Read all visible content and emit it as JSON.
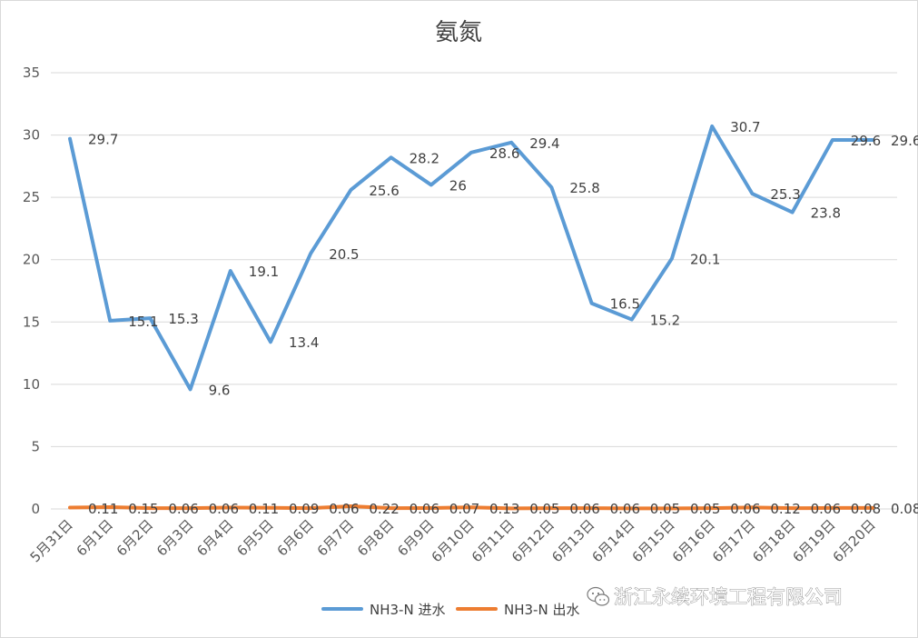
{
  "chart_data": {
    "type": "line",
    "title": "氨氮",
    "xlabel": "",
    "ylabel": "",
    "ylim": [
      0,
      35
    ],
    "yticks": [
      0,
      5,
      10,
      15,
      20,
      25,
      30,
      35
    ],
    "grid": true,
    "legend_position": "bottom",
    "categories": [
      "5月31日",
      "6月1日",
      "6月2日",
      "6月3日",
      "6月4日",
      "6月5日",
      "6月6日",
      "6月7日",
      "6月8日",
      "6月9日",
      "6月10日",
      "6月11日",
      "6月12日",
      "6月13日",
      "6月14日",
      "6月15日",
      "6月16日",
      "6月17日",
      "6月18日",
      "6月19日",
      "6月20日"
    ],
    "series": [
      {
        "name": "NH3-N  进水",
        "color": "#5b9bd5",
        "values": [
          29.7,
          15.1,
          15.3,
          9.6,
          19.1,
          13.4,
          20.5,
          25.6,
          28.2,
          26,
          28.6,
          29.4,
          25.8,
          16.5,
          15.2,
          20.1,
          30.7,
          25.3,
          23.8,
          29.6,
          29.6
        ]
      },
      {
        "name": "NH3-N  出水",
        "color": "#ed7d31",
        "values": [
          0.11,
          0.15,
          0.06,
          0.06,
          0.11,
          0.09,
          0.06,
          0.22,
          0.06,
          0.07,
          0.13,
          0.05,
          0.06,
          0.06,
          0.05,
          0.05,
          0.06,
          0.12,
          0.06,
          0.08,
          0.08
        ]
      }
    ]
  },
  "watermark": {
    "text": "浙江永续环境工程有限公司",
    "icon": "wechat-icon"
  },
  "colors": {
    "grid": "#d9d9d9",
    "axis_text": "#595959"
  }
}
